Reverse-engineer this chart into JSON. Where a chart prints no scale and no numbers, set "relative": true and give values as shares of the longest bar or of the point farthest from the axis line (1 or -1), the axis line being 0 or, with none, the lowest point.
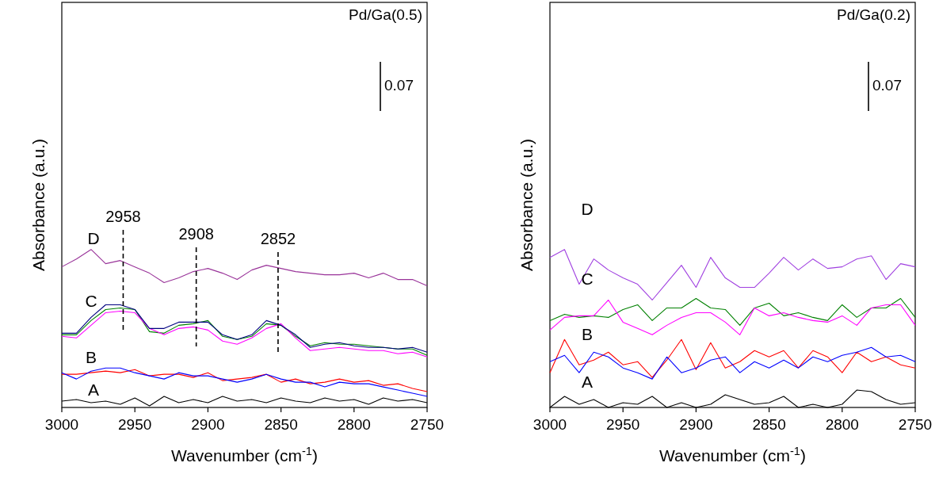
{
  "chart_data": [
    {
      "type": "line",
      "title": "Pd/Ga(0.5)",
      "xlabel": "Wavenumber (cm$^{-1}$)",
      "ylabel": "Absorbance (a.u.)",
      "relative": true,
      "x": [
        3000,
        2990,
        2980,
        2970,
        2960,
        2950,
        2940,
        2930,
        2920,
        2910,
        2900,
        2890,
        2880,
        2870,
        2860,
        2850,
        2840,
        2830,
        2820,
        2810,
        2800,
        2790,
        2780,
        2770,
        2760,
        2750
      ],
      "xlim": [
        3000,
        2750
      ],
      "xticks": [
        3000,
        2950,
        2900,
        2850,
        2800,
        2750
      ],
      "line_style": "solid",
      "series": [
        {
          "color": "#000000",
          "values": [
            0.04,
            0.05,
            0.03,
            0.04,
            0.02,
            0.06,
            0.01,
            0.07,
            0.03,
            0.05,
            0.03,
            0.07,
            0.04,
            0.05,
            0.03,
            0.06,
            0.04,
            0.03,
            0.06,
            0.04,
            0.05,
            0.02,
            0.06,
            0.04,
            0.05,
            0.03
          ]
        },
        {
          "color": "#ff0000",
          "values": [
            0.21,
            0.21,
            0.22,
            0.23,
            0.22,
            0.24,
            0.2,
            0.21,
            0.21,
            0.19,
            0.22,
            0.17,
            0.18,
            0.19,
            0.21,
            0.16,
            0.18,
            0.15,
            0.16,
            0.18,
            0.16,
            0.17,
            0.14,
            0.15,
            0.12,
            0.1
          ]
        },
        {
          "color": "#0000ff",
          "values": [
            0.22,
            0.18,
            0.23,
            0.25,
            0.25,
            0.22,
            0.2,
            0.18,
            0.22,
            0.2,
            0.2,
            0.18,
            0.16,
            0.18,
            0.21,
            0.18,
            0.16,
            0.16,
            0.13,
            0.16,
            0.15,
            0.15,
            0.13,
            0.11,
            0.09,
            0.07
          ]
        },
        {
          "color": "#008000",
          "values": [
            0.46,
            0.46,
            0.55,
            0.62,
            0.63,
            0.62,
            0.48,
            0.47,
            0.52,
            0.53,
            0.55,
            0.45,
            0.43,
            0.45,
            0.53,
            0.52,
            0.45,
            0.39,
            0.41,
            0.4,
            0.4,
            0.39,
            0.38,
            0.37,
            0.37,
            0.33
          ]
        },
        {
          "color": "#ff00ff",
          "values": [
            0.45,
            0.44,
            0.52,
            0.6,
            0.61,
            0.6,
            0.5,
            0.46,
            0.5,
            0.51,
            0.49,
            0.42,
            0.4,
            0.44,
            0.5,
            0.53,
            0.44,
            0.36,
            0.37,
            0.38,
            0.37,
            0.36,
            0.36,
            0.34,
            0.35,
            0.32
          ]
        },
        {
          "color": "#000080",
          "values": [
            0.47,
            0.47,
            0.57,
            0.65,
            0.65,
            0.62,
            0.5,
            0.5,
            0.54,
            0.54,
            0.54,
            0.46,
            0.43,
            0.46,
            0.55,
            0.52,
            0.46,
            0.38,
            0.4,
            0.41,
            0.39,
            0.38,
            0.38,
            0.37,
            0.38,
            0.35
          ]
        },
        {
          "color": "#993399",
          "values": [
            0.89,
            0.94,
            1.0,
            0.91,
            0.93,
            0.89,
            0.85,
            0.79,
            0.82,
            0.86,
            0.88,
            0.85,
            0.81,
            0.87,
            0.9,
            0.88,
            0.86,
            0.85,
            0.84,
            0.84,
            0.85,
            0.82,
            0.85,
            0.81,
            0.81,
            0.77
          ]
        }
      ],
      "ref_lines": [
        {
          "axis": "x",
          "value": 2958,
          "label": "2958",
          "line_style": "dashed",
          "color": "#000000"
        },
        {
          "axis": "x",
          "value": 2908,
          "label": "2908",
          "line_style": "dashed",
          "color": "#000000"
        },
        {
          "axis": "x",
          "value": 2852,
          "label": "2852",
          "line_style": "dashed",
          "color": "#000000"
        }
      ],
      "annotations": [
        "0.07",
        "D",
        "C",
        "B",
        "A"
      ]
    },
    {
      "type": "line",
      "title": "Pd/Ga(0.2)",
      "xlabel": "Wavenumber (cm$^{-1}$)",
      "ylabel": "Absorbance (a.u.)",
      "relative": true,
      "x": [
        3000,
        2990,
        2980,
        2970,
        2960,
        2950,
        2940,
        2930,
        2920,
        2910,
        2900,
        2890,
        2880,
        2870,
        2860,
        2850,
        2840,
        2830,
        2820,
        2810,
        2800,
        2790,
        2780,
        2770,
        2760,
        2750
      ],
      "xlim": [
        3000,
        2750
      ],
      "xticks": [
        3000,
        2950,
        2900,
        2850,
        2800,
        2750
      ],
      "line_style": "solid",
      "series": [
        {
          "color": "#000000",
          "values": [
            0.0,
            0.07,
            0.02,
            0.05,
            0.0,
            0.03,
            0.02,
            0.07,
            0.0,
            0.03,
            0.0,
            0.02,
            0.08,
            0.05,
            0.02,
            0.03,
            0.07,
            0.0,
            0.02,
            0.0,
            0.02,
            0.11,
            0.1,
            0.05,
            0.02,
            0.03
          ]
        },
        {
          "color": "#ff0000",
          "values": [
            0.22,
            0.43,
            0.27,
            0.3,
            0.35,
            0.27,
            0.29,
            0.19,
            0.3,
            0.43,
            0.24,
            0.41,
            0.25,
            0.29,
            0.36,
            0.32,
            0.36,
            0.25,
            0.36,
            0.32,
            0.22,
            0.35,
            0.29,
            0.32,
            0.27,
            0.25
          ]
        },
        {
          "color": "#0000ff",
          "values": [
            0.29,
            0.33,
            0.22,
            0.35,
            0.32,
            0.25,
            0.22,
            0.18,
            0.32,
            0.22,
            0.25,
            0.3,
            0.32,
            0.22,
            0.29,
            0.25,
            0.3,
            0.25,
            0.32,
            0.29,
            0.33,
            0.35,
            0.38,
            0.32,
            0.33,
            0.29
          ]
        },
        {
          "color": "#008000",
          "values": [
            0.55,
            0.59,
            0.57,
            0.58,
            0.57,
            0.62,
            0.65,
            0.55,
            0.63,
            0.63,
            0.69,
            0.63,
            0.62,
            0.52,
            0.63,
            0.66,
            0.58,
            0.6,
            0.57,
            0.55,
            0.65,
            0.57,
            0.63,
            0.63,
            0.69,
            0.57
          ]
        },
        {
          "color": "#ff00ff",
          "values": [
            0.49,
            0.57,
            0.58,
            0.58,
            0.68,
            0.54,
            0.5,
            0.46,
            0.52,
            0.57,
            0.6,
            0.6,
            0.54,
            0.46,
            0.63,
            0.58,
            0.6,
            0.57,
            0.55,
            0.54,
            0.58,
            0.52,
            0.63,
            0.65,
            0.65,
            0.52
          ]
        },
        {
          "color": "#a040e0",
          "values": [
            0.95,
            1.0,
            0.78,
            0.94,
            0.87,
            0.82,
            0.78,
            0.68,
            0.79,
            0.9,
            0.76,
            0.95,
            0.82,
            0.76,
            0.76,
            0.85,
            0.95,
            0.87,
            0.94,
            0.88,
            0.89,
            0.94,
            0.96,
            0.81,
            0.91,
            0.89
          ]
        }
      ],
      "annotations": [
        "0.07",
        "D",
        "C",
        "B",
        "A"
      ]
    }
  ]
}
